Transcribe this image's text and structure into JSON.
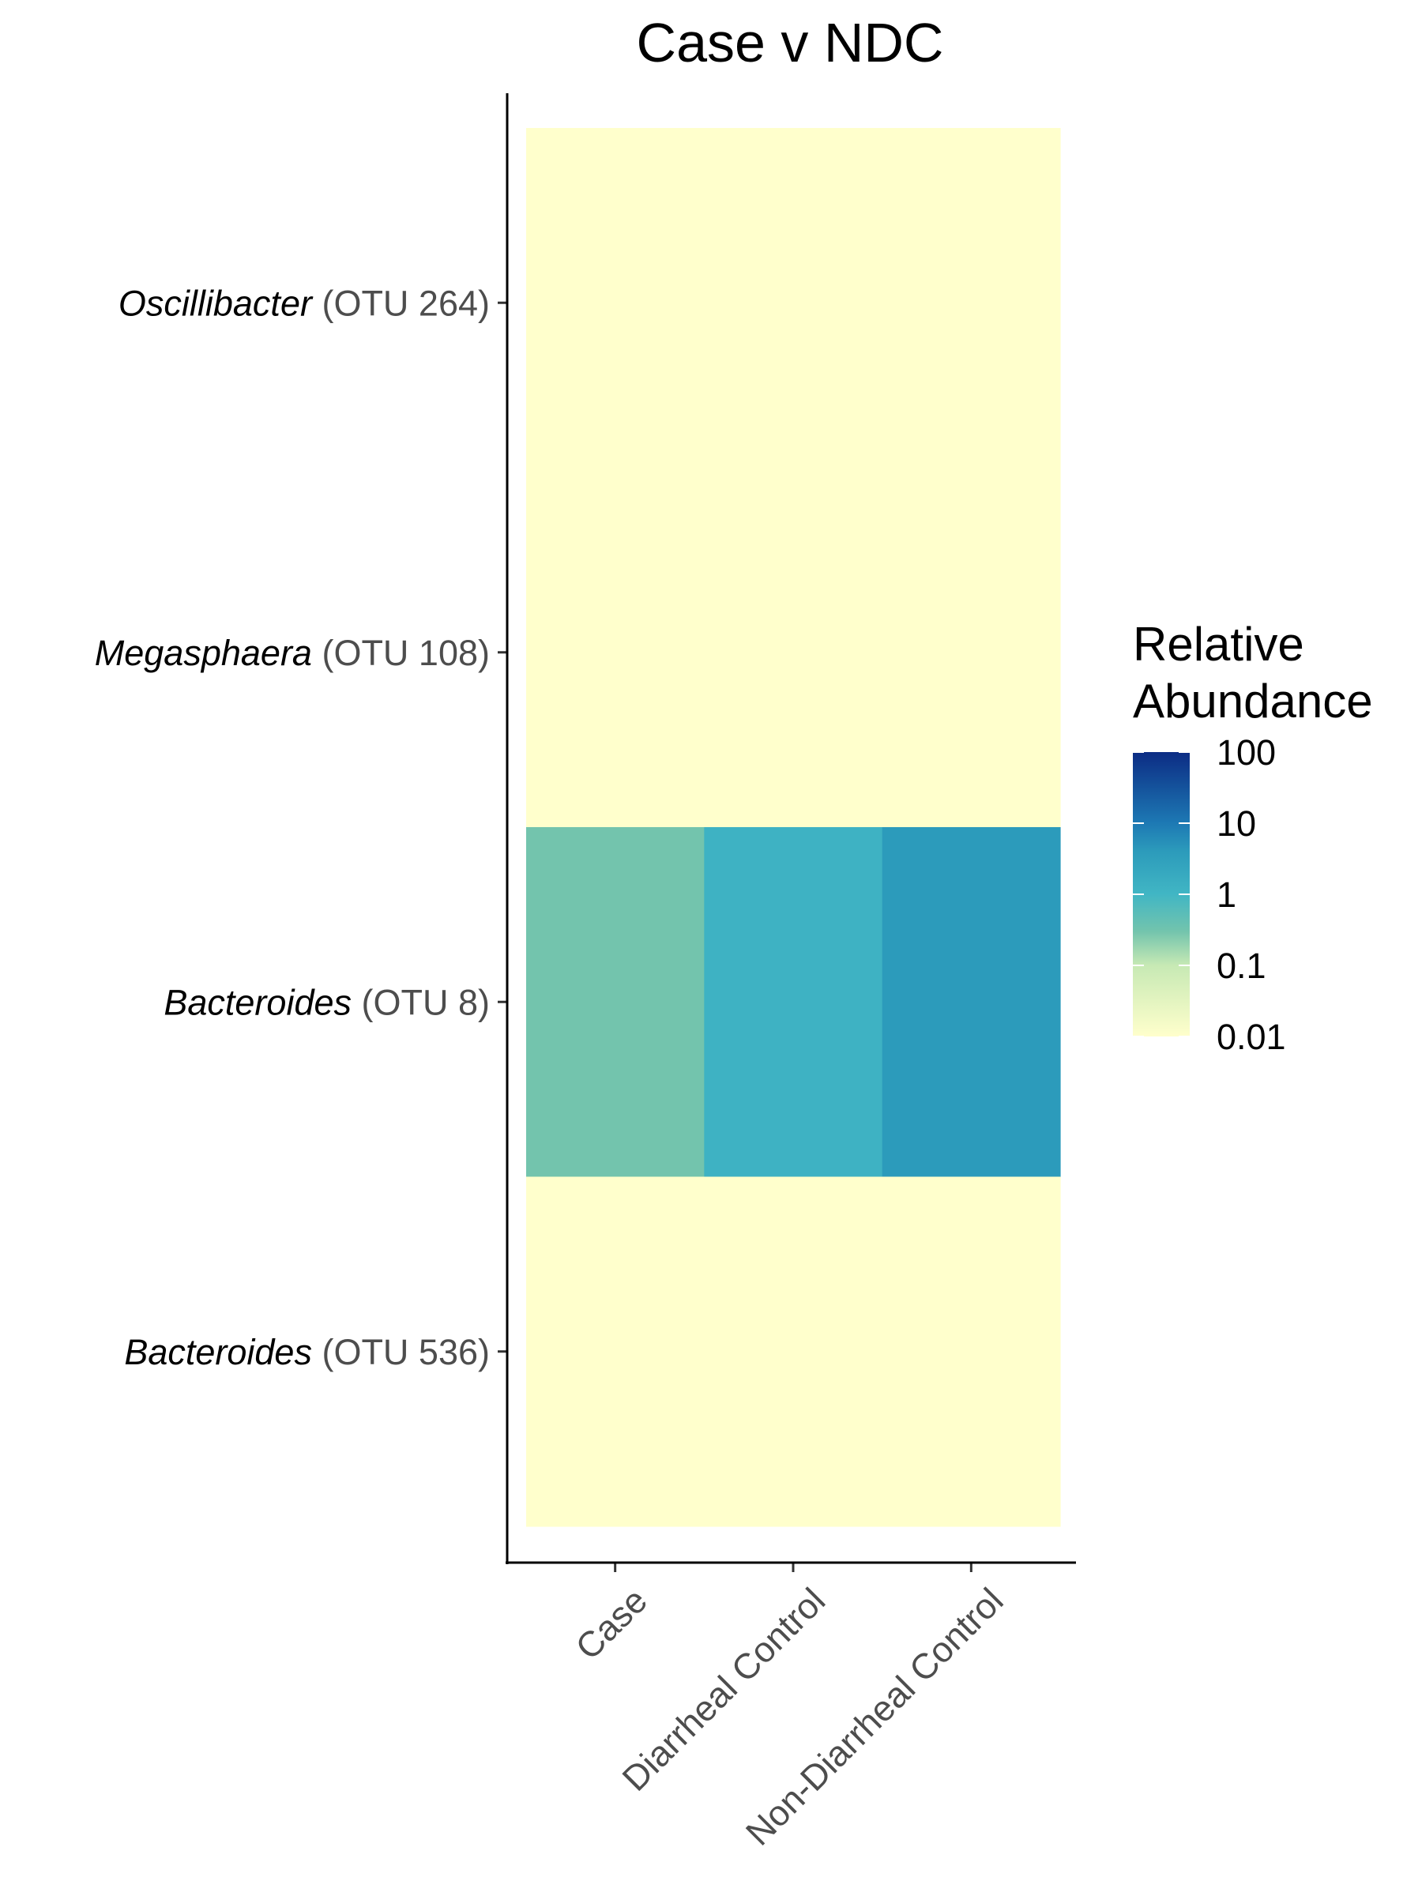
{
  "chart_data": {
    "type": "heatmap",
    "title": "Case v NDC",
    "x_categories": [
      "Case",
      "Diarrheal Control",
      "Non-Diarrheal Control"
    ],
    "y_categories": [
      {
        "genus": "Oscillibacter",
        "otu": "(OTU 264)"
      },
      {
        "genus": "Megasphaera",
        "otu": "(OTU 108)"
      },
      {
        "genus": "Bacteroides",
        "otu": "(OTU 8)"
      },
      {
        "genus": "Bacteroides",
        "otu": "(OTU 536)"
      }
    ],
    "values": [
      [
        0.01,
        0.01,
        0.01
      ],
      [
        0.01,
        0.01,
        0.01
      ],
      [
        0.3,
        1.2,
        4.0
      ],
      [
        0.01,
        0.01,
        0.01
      ]
    ],
    "legend": {
      "title_lines": [
        "Relative",
        "Abundance"
      ],
      "ticks": [
        "100",
        "10",
        "1",
        "0.1",
        "0.01"
      ],
      "tick_values": [
        100,
        10,
        1,
        0.1,
        0.01
      ],
      "scale": "log10",
      "range": [
        0.01,
        100
      ],
      "position": "right"
    },
    "color_scale": {
      "name": "YlGnBu",
      "stops": [
        {
          "value": 0.01,
          "color": "#ffffcc"
        },
        {
          "value": 0.1,
          "color": "#c7e9b4"
        },
        {
          "value": 0.3,
          "color": "#73c4ad"
        },
        {
          "value": 1,
          "color": "#41b6c4"
        },
        {
          "value": 4,
          "color": "#2c9bbb"
        },
        {
          "value": 10,
          "color": "#1d79b4"
        },
        {
          "value": 100,
          "color": "#0c2c84"
        }
      ]
    },
    "grid": false
  }
}
